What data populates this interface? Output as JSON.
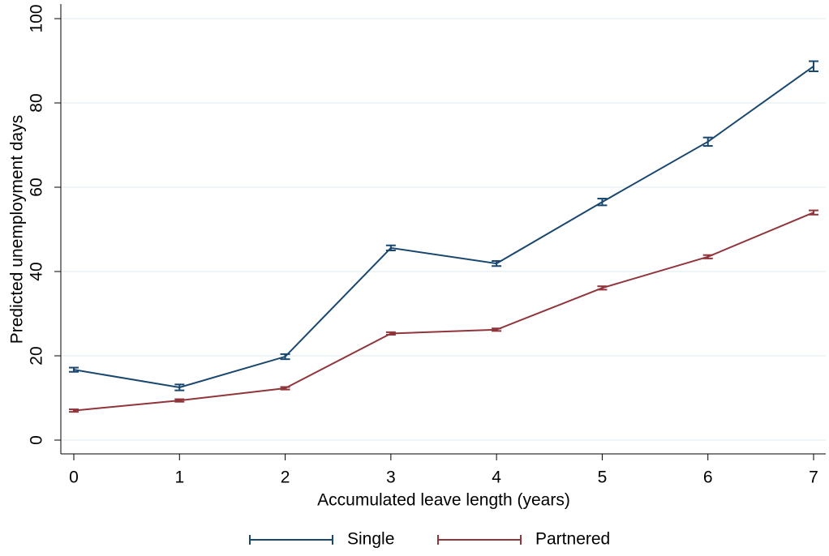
{
  "chart_data": {
    "type": "line",
    "x_label": "Accumulated leave length (years)",
    "y_label": "Predicted unemployment days",
    "x": [
      0,
      1,
      2,
      3,
      4,
      5,
      6,
      7
    ],
    "xlim": [
      0,
      7
    ],
    "xticks": [
      0,
      1,
      2,
      3,
      4,
      5,
      6,
      7
    ],
    "ylim": [
      0,
      100
    ],
    "yticks": [
      0,
      20,
      40,
      60,
      80,
      100
    ],
    "grid": true,
    "legend": "bottom",
    "series": [
      {
        "name": "Single",
        "color": "#1a476f",
        "values": [
          16.7,
          12.5,
          19.8,
          45.6,
          41.9,
          56.5,
          70.8,
          88.7
        ],
        "errors": [
          0.5,
          0.7,
          0.6,
          0.6,
          0.6,
          0.8,
          1.0,
          1.2
        ]
      },
      {
        "name": "Partnered",
        "color": "#90353b",
        "values": [
          7.0,
          9.4,
          12.3,
          25.3,
          26.2,
          36.1,
          43.5,
          54.0
        ],
        "errors": [
          0.3,
          0.3,
          0.3,
          0.3,
          0.3,
          0.4,
          0.4,
          0.5
        ]
      }
    ]
  }
}
